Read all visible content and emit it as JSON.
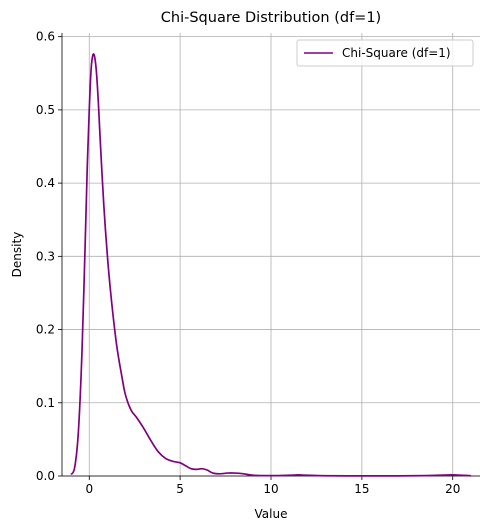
{
  "chart_data": {
    "type": "line",
    "title": "Chi-Square Distribution (df=1)",
    "xlabel": "Value",
    "ylabel": "Density",
    "xlim": [
      -1.5,
      21.5
    ],
    "ylim": [
      0,
      0.605
    ],
    "xticks": [
      0,
      5,
      10,
      15,
      20
    ],
    "yticks": [
      0.0,
      0.1,
      0.2,
      0.3,
      0.4,
      0.5,
      0.6
    ],
    "grid": true,
    "legend_position": "top-right",
    "series": [
      {
        "name": "Chi-Square (df=1)",
        "color": "#800080",
        "x": [
          -1.0,
          -0.8,
          -0.6,
          -0.4,
          -0.2,
          -0.1,
          0.0,
          0.1,
          0.2,
          0.3,
          0.4,
          0.5,
          0.6,
          0.8,
          1.0,
          1.2,
          1.5,
          1.8,
          2.0,
          2.3,
          2.6,
          3.0,
          3.4,
          3.8,
          4.2,
          4.6,
          5.0,
          5.3,
          5.6,
          5.9,
          6.2,
          6.5,
          6.8,
          7.2,
          7.6,
          8.0,
          8.5,
          9.0,
          10.0,
          11.0,
          11.5,
          12.0,
          13.0,
          15.0,
          17.0,
          18.5,
          19.5,
          20.0,
          20.5,
          21.0
        ],
        "y": [
          0.002,
          0.012,
          0.06,
          0.17,
          0.34,
          0.43,
          0.5,
          0.555,
          0.575,
          0.572,
          0.55,
          0.51,
          0.46,
          0.37,
          0.3,
          0.245,
          0.18,
          0.135,
          0.11,
          0.09,
          0.08,
          0.065,
          0.048,
          0.033,
          0.024,
          0.02,
          0.018,
          0.014,
          0.01,
          0.009,
          0.01,
          0.008,
          0.004,
          0.003,
          0.004,
          0.004,
          0.003,
          0.001,
          0.0005,
          0.001,
          0.0015,
          0.001,
          0.0003,
          0.0002,
          0.0002,
          0.0005,
          0.0012,
          0.0015,
          0.001,
          0.0003
        ]
      }
    ]
  }
}
